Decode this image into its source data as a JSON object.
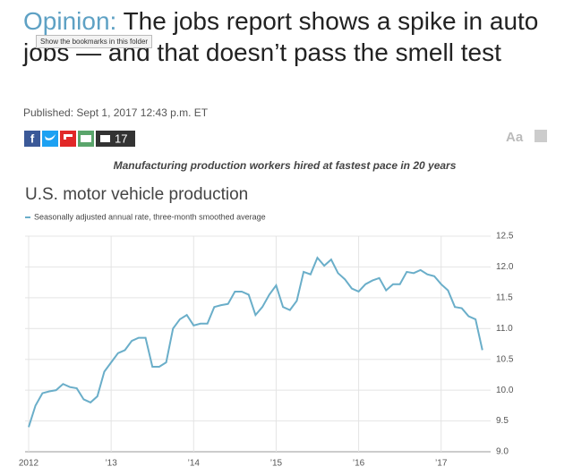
{
  "header": {
    "kicker": "Opinion:",
    "title": "The jobs report shows a spike in auto jobs — and that doesn’t pass the smell test",
    "tooltip": "Show the bookmarks in this folder",
    "published": "Published: Sept 1, 2017 12:43 p.m. ET",
    "comment_count": "17",
    "font_button": "Aa"
  },
  "chart_caption": "Manufacturing production workers hired at fastest pace in 20 years",
  "chart_data": {
    "type": "line",
    "title": "U.S. motor vehicle production",
    "x": [
      2012,
      2012.083,
      2012.167,
      2012.25,
      2012.333,
      2012.417,
      2012.5,
      2012.583,
      2012.667,
      2012.75,
      2012.833,
      2012.917,
      2013,
      2013.083,
      2013.167,
      2013.25,
      2013.333,
      2013.417,
      2013.5,
      2013.583,
      2013.667,
      2013.75,
      2013.833,
      2013.917,
      2014,
      2014.083,
      2014.167,
      2014.25,
      2014.333,
      2014.417,
      2014.5,
      2014.583,
      2014.667,
      2014.75,
      2014.833,
      2014.917,
      2015,
      2015.083,
      2015.167,
      2015.25,
      2015.333,
      2015.417,
      2015.5,
      2015.583,
      2015.667,
      2015.75,
      2015.833,
      2015.917,
      2016,
      2016.083,
      2016.167,
      2016.25,
      2016.333,
      2016.417,
      2016.5,
      2016.583,
      2016.667,
      2016.75,
      2016.833,
      2016.917,
      2017,
      2017.083,
      2017.167,
      2017.25,
      2017.333,
      2017.417,
      2017.5
    ],
    "series": [
      {
        "name": "Seasonally adjusted annual rate, three-month smoothed average",
        "color": "#6aaec9",
        "values": [
          9.4,
          9.75,
          9.95,
          9.98,
          10.0,
          10.1,
          10.05,
          10.03,
          9.85,
          9.8,
          9.9,
          10.3,
          10.45,
          10.6,
          10.65,
          10.8,
          10.85,
          10.85,
          10.38,
          10.38,
          10.45,
          11.0,
          11.15,
          11.22,
          11.05,
          11.08,
          11.08,
          11.35,
          11.38,
          11.4,
          11.6,
          11.6,
          11.55,
          11.22,
          11.35,
          11.55,
          11.7,
          11.35,
          11.3,
          11.45,
          11.92,
          11.88,
          12.15,
          12.02,
          12.12,
          11.9,
          11.8,
          11.65,
          11.6,
          11.72,
          11.78,
          11.82,
          11.62,
          11.72,
          11.72,
          11.92,
          11.9,
          11.95,
          11.88,
          11.85,
          11.72,
          11.62,
          11.35,
          11.33,
          11.2,
          11.15,
          10.65
        ]
      }
    ],
    "xlim": [
      2012,
      2017.6
    ],
    "xticks": [
      {
        "value": 2012,
        "label": "2012"
      },
      {
        "value": 2013,
        "label": "’13"
      },
      {
        "value": 2014,
        "label": "’14"
      },
      {
        "value": 2015,
        "label": "’15"
      },
      {
        "value": 2016,
        "label": "’16"
      },
      {
        "value": 2017,
        "label": "’17"
      }
    ],
    "ylim": [
      9.0,
      12.5
    ],
    "yticks": [
      {
        "value": 9,
        "label": "9.0"
      },
      9.5,
      {
        "value": 10,
        "label": "10.0"
      },
      10.5,
      {
        "value": 11,
        "label": "11.0"
      },
      11.5,
      {
        "value": 12,
        "label": "12.0"
      },
      12.5
    ],
    "grid": true
  }
}
